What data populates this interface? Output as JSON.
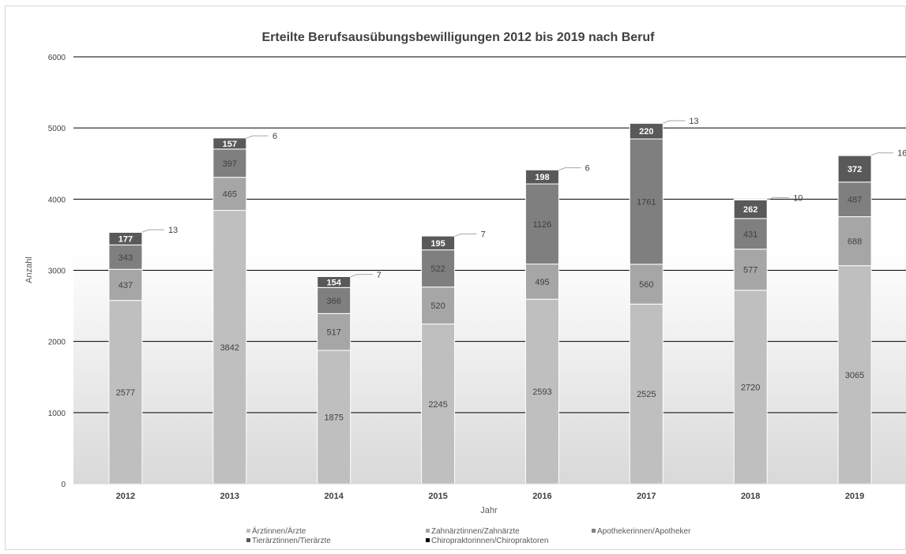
{
  "chart_data": {
    "type": "bar",
    "stacked": true,
    "title": "Erteilte Berufsausübungsbewilligungen 2012 bis 2019 nach Beruf",
    "xlabel": "Jahr",
    "ylabel": "Anzahl",
    "ylim": [
      0,
      6000
    ],
    "yticks": [
      "0",
      "1000",
      "2000",
      "3000",
      "4000",
      "5000",
      "6000"
    ],
    "grid": true,
    "legend_position": "bottom",
    "categories": [
      "2012",
      "2013",
      "2014",
      "2015",
      "2016",
      "2017",
      "2018",
      "2019"
    ],
    "series": [
      {
        "name": "Ärztinnen/Ärzte",
        "color": "#bfbfbf",
        "values": [
          2577,
          3842,
          1875,
          2245,
          2593,
          2525,
          2720,
          3065
        ]
      },
      {
        "name": "Zahnärztinnen/Zahnärzte",
        "color": "#a6a6a6",
        "values": [
          437,
          465,
          517,
          520,
          495,
          560,
          577,
          688
        ]
      },
      {
        "name": "Apothekerinnen/Apotheker",
        "color": "#7f7f7f",
        "values": [
          343,
          397,
          366,
          522,
          1126,
          1761,
          431,
          487
        ]
      },
      {
        "name": "Tierärztinnen/Tierärzte",
        "color": "#595959",
        "values": [
          177,
          157,
          154,
          195,
          198,
          220,
          262,
          372
        ]
      },
      {
        "name": "Chiropraktorinnen/Chiropraktoren",
        "color": "#d0d0d0",
        "values": [
          13,
          6,
          7,
          7,
          6,
          13,
          10,
          16
        ]
      }
    ]
  }
}
